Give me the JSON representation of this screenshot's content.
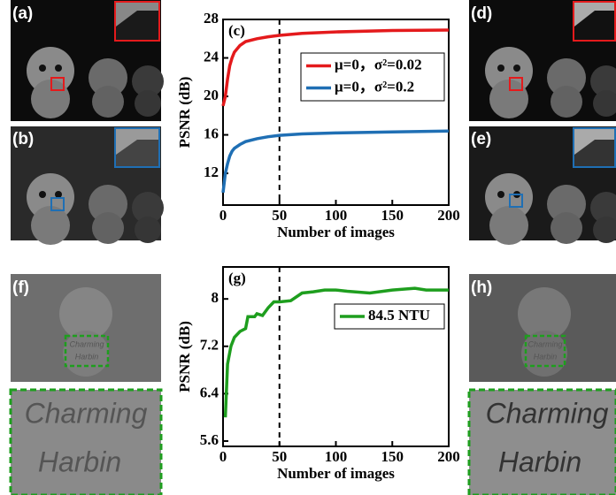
{
  "panels": [
    "(a)",
    "(b)",
    "(d)",
    "(e)",
    "(f)",
    "(h)"
  ],
  "image_text": [
    "Charming",
    "Harbin"
  ],
  "chart_data": [
    {
      "type": "line",
      "panel_label": "(c)",
      "x_label": "Number of images",
      "y_label": "PSNR (dB)",
      "x": [
        0,
        2,
        4,
        6,
        8,
        10,
        15,
        20,
        30,
        40,
        50,
        70,
        100,
        150,
        200
      ],
      "series": [
        {
          "name": "μ=0，σ²=0.02",
          "color": "#e41a1c",
          "values": [
            19.0,
            20.0,
            21.8,
            23.2,
            24.0,
            24.6,
            25.3,
            25.7,
            26.0,
            26.2,
            26.35,
            26.55,
            26.7,
            26.85,
            26.9
          ]
        },
        {
          "name": "μ=0，σ²=0.2",
          "color": "#1f6fb4",
          "values": [
            10.0,
            12.0,
            13.0,
            13.8,
            14.3,
            14.6,
            15.0,
            15.3,
            15.6,
            15.8,
            15.95,
            16.1,
            16.2,
            16.3,
            16.4
          ]
        }
      ],
      "xlim": [
        0,
        200
      ],
      "xticks": [
        0,
        50,
        100,
        150,
        200
      ],
      "ylim": [
        8.7,
        28
      ],
      "yticks": [
        12,
        16,
        20,
        24,
        28
      ],
      "vline": 50,
      "legend": "upper right"
    },
    {
      "type": "line",
      "panel_label": "(g)",
      "x_label": "Number of images",
      "y_label": "PSNR (dB)",
      "x": [
        2,
        4,
        7,
        10,
        15,
        20,
        22,
        28,
        30,
        35,
        40,
        45,
        50,
        60,
        70,
        80,
        90,
        100,
        110,
        130,
        150,
        170,
        180,
        200
      ],
      "series": [
        {
          "name": "84.5 NTU",
          "color": "#1e9e1e",
          "values": [
            6.0,
            6.9,
            7.2,
            7.35,
            7.45,
            7.5,
            7.7,
            7.7,
            7.75,
            7.72,
            7.85,
            7.95,
            7.95,
            7.97,
            8.1,
            8.12,
            8.15,
            8.15,
            8.13,
            8.1,
            8.15,
            8.18,
            8.15,
            8.15
          ]
        }
      ],
      "xlim": [
        0,
        200
      ],
      "xticks": [
        0,
        50,
        100,
        150,
        200
      ],
      "ylim": [
        5.51,
        8.54
      ],
      "yticks": [
        5.6,
        6.4,
        7.2,
        8.0
      ],
      "vline": 50,
      "legend": "upper right"
    }
  ]
}
